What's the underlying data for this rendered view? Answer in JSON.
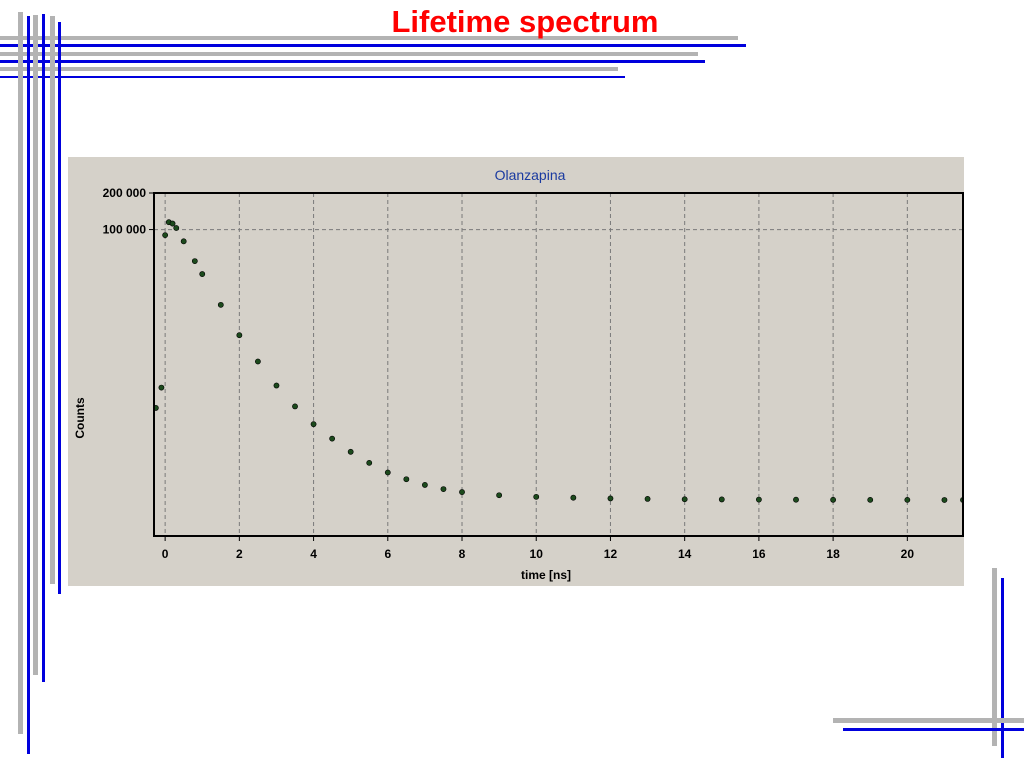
{
  "slide": {
    "title": "Lifetime spectrum",
    "title_color": "#ff0000",
    "accent_blue": "#0000dd",
    "accent_gray": "#b3b3b3"
  },
  "chart_data": {
    "type": "scatter",
    "title": "Olanzapina",
    "xlabel": "time [ns]",
    "ylabel": "Counts",
    "x_ticks": [
      0,
      2,
      4,
      6,
      8,
      10,
      12,
      14,
      16,
      18,
      20
    ],
    "y_tick_labels": [
      "200 000",
      "100 000"
    ],
    "xlim": [
      -0.3,
      21.5
    ],
    "grid": true,
    "background": "#d5d1c9",
    "series": [
      {
        "color": "#1c4a1c",
        "x": [
          -0.25,
          -0.1,
          0.0,
          0.1,
          0.2,
          0.3,
          0.5,
          0.8,
          1.0,
          1.5,
          2.0,
          2.5,
          3.0,
          3.5,
          4.0,
          4.5,
          5.0,
          5.5,
          6.0,
          6.5,
          7.0,
          7.5,
          8.0,
          9.0,
          10.0,
          11.0,
          12.0,
          13.0,
          14.0,
          15.0,
          16.0,
          17.0,
          18.0,
          19.0,
          20.0,
          21.0,
          21.5
        ],
        "y": [
          3400,
          5000,
          90000,
          115000,
          112000,
          103000,
          80000,
          55000,
          43000,
          24000,
          13500,
          8200,
          5200,
          3500,
          2500,
          1900,
          1480,
          1200,
          1000,
          880,
          790,
          730,
          690,
          650,
          630,
          620,
          612,
          606,
          602,
          600,
          598,
          597,
          596,
          595,
          595,
          594,
          594
        ]
      }
    ]
  }
}
